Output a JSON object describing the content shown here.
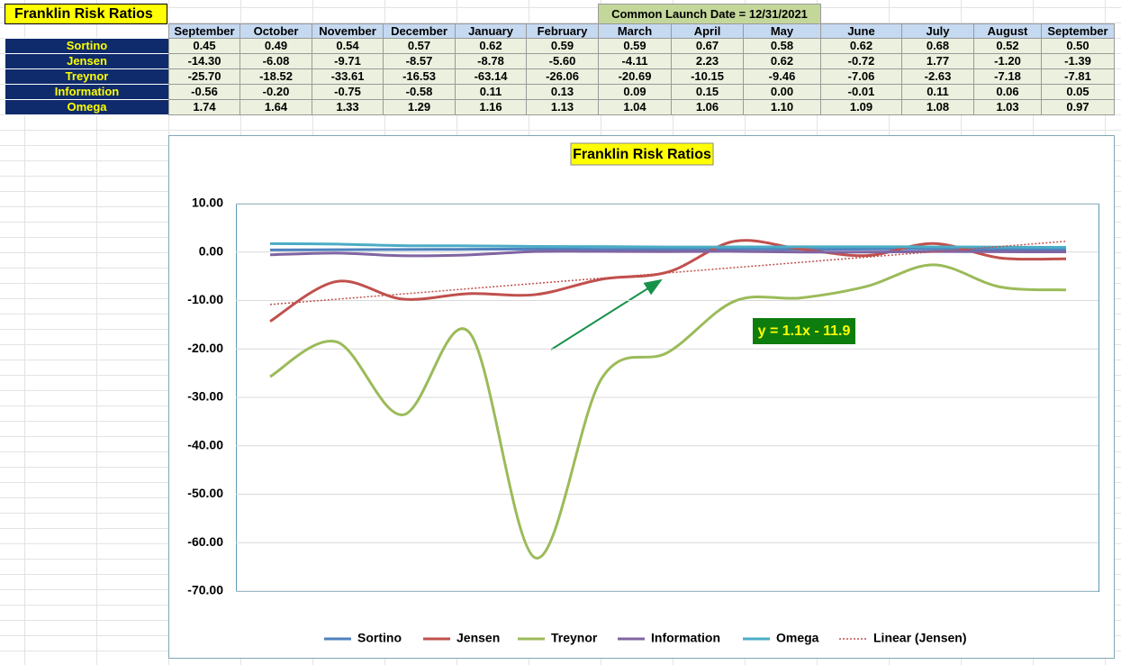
{
  "table": {
    "title": "Franklin Risk Ratios",
    "note": "Common Launch Date = 12/31/2021",
    "columns": [
      "September",
      "October",
      "November",
      "December",
      "January",
      "February",
      "March",
      "April",
      "May",
      "June",
      "July",
      "August",
      "September"
    ],
    "rows": [
      [
        "Sortino",
        "0.45",
        "0.49",
        "0.54",
        "0.57",
        "0.62",
        "0.59",
        "0.59",
        "0.67",
        "0.58",
        "0.62",
        "0.68",
        "0.52",
        "0.50"
      ],
      [
        "Jensen",
        "-14.30",
        "-6.08",
        "-9.71",
        "-8.57",
        "-8.78",
        "-5.60",
        "-4.11",
        "2.23",
        "0.62",
        "-0.72",
        "1.77",
        "-1.20",
        "-1.39"
      ],
      [
        "Treynor",
        "-25.70",
        "-18.52",
        "-33.61",
        "-16.53",
        "-63.14",
        "-26.06",
        "-20.69",
        "-10.15",
        "-9.46",
        "-7.06",
        "-2.63",
        "-7.18",
        "-7.81"
      ],
      [
        "Information",
        "-0.56",
        "-0.20",
        "-0.75",
        "-0.58",
        "0.11",
        "0.13",
        "0.09",
        "0.15",
        "0.00",
        "-0.01",
        "0.11",
        "0.06",
        "0.05"
      ],
      [
        "Omega",
        "1.74",
        "1.64",
        "1.33",
        "1.29",
        "1.16",
        "1.13",
        "1.04",
        "1.06",
        "1.10",
        "1.09",
        "1.08",
        "1.03",
        "0.97"
      ]
    ]
  },
  "chart_data": {
    "type": "line",
    "title": "Franklin Risk Ratios",
    "series": [
      {
        "name": "Sortino",
        "color": "#4f81bd",
        "values": [
          0.45,
          0.49,
          0.54,
          0.57,
          0.62,
          0.59,
          0.59,
          0.67,
          0.58,
          0.62,
          0.68,
          0.52,
          0.5
        ]
      },
      {
        "name": "Jensen",
        "color": "#c0504d",
        "values": [
          -14.3,
          -6.08,
          -9.71,
          -8.57,
          -8.78,
          -5.6,
          -4.11,
          2.23,
          0.62,
          -0.72,
          1.77,
          -1.2,
          -1.39
        ]
      },
      {
        "name": "Treynor",
        "color": "#9bbb59",
        "values": [
          -25.7,
          -18.52,
          -33.61,
          -16.53,
          -63.14,
          -26.06,
          -20.69,
          -10.15,
          -9.46,
          -7.06,
          -2.63,
          -7.18,
          -7.81
        ]
      },
      {
        "name": "Information",
        "color": "#8064a2",
        "values": [
          -0.56,
          -0.2,
          -0.75,
          -0.58,
          0.11,
          0.13,
          0.09,
          0.15,
          0.0,
          -0.01,
          0.11,
          0.06,
          0.05
        ]
      },
      {
        "name": "Omega",
        "color": "#4bacc6",
        "values": [
          1.74,
          1.64,
          1.33,
          1.29,
          1.16,
          1.13,
          1.04,
          1.06,
          1.1,
          1.09,
          1.08,
          1.03,
          0.97
        ]
      }
    ],
    "trendline": {
      "name": "Linear (Jensen)",
      "series": 1,
      "color": "#c0504d",
      "equation": "y = 1.1x - 11.9"
    },
    "ylim": [
      -70,
      10
    ],
    "yticks": [
      {
        "value": -70,
        "label": "-70.00"
      },
      {
        "value": -60,
        "label": "-60.00"
      },
      {
        "value": -50,
        "label": "-50.00"
      },
      {
        "value": -40,
        "label": "-40.00"
      },
      {
        "value": -30,
        "label": "-30.00"
      },
      {
        "value": -20,
        "label": "-20.00"
      },
      {
        "value": -10,
        "label": "-10.00"
      },
      {
        "value": 0,
        "label": "0.00"
      },
      {
        "value": 10,
        "label": "10.00"
      }
    ],
    "grid": true,
    "legend": "bottom"
  }
}
